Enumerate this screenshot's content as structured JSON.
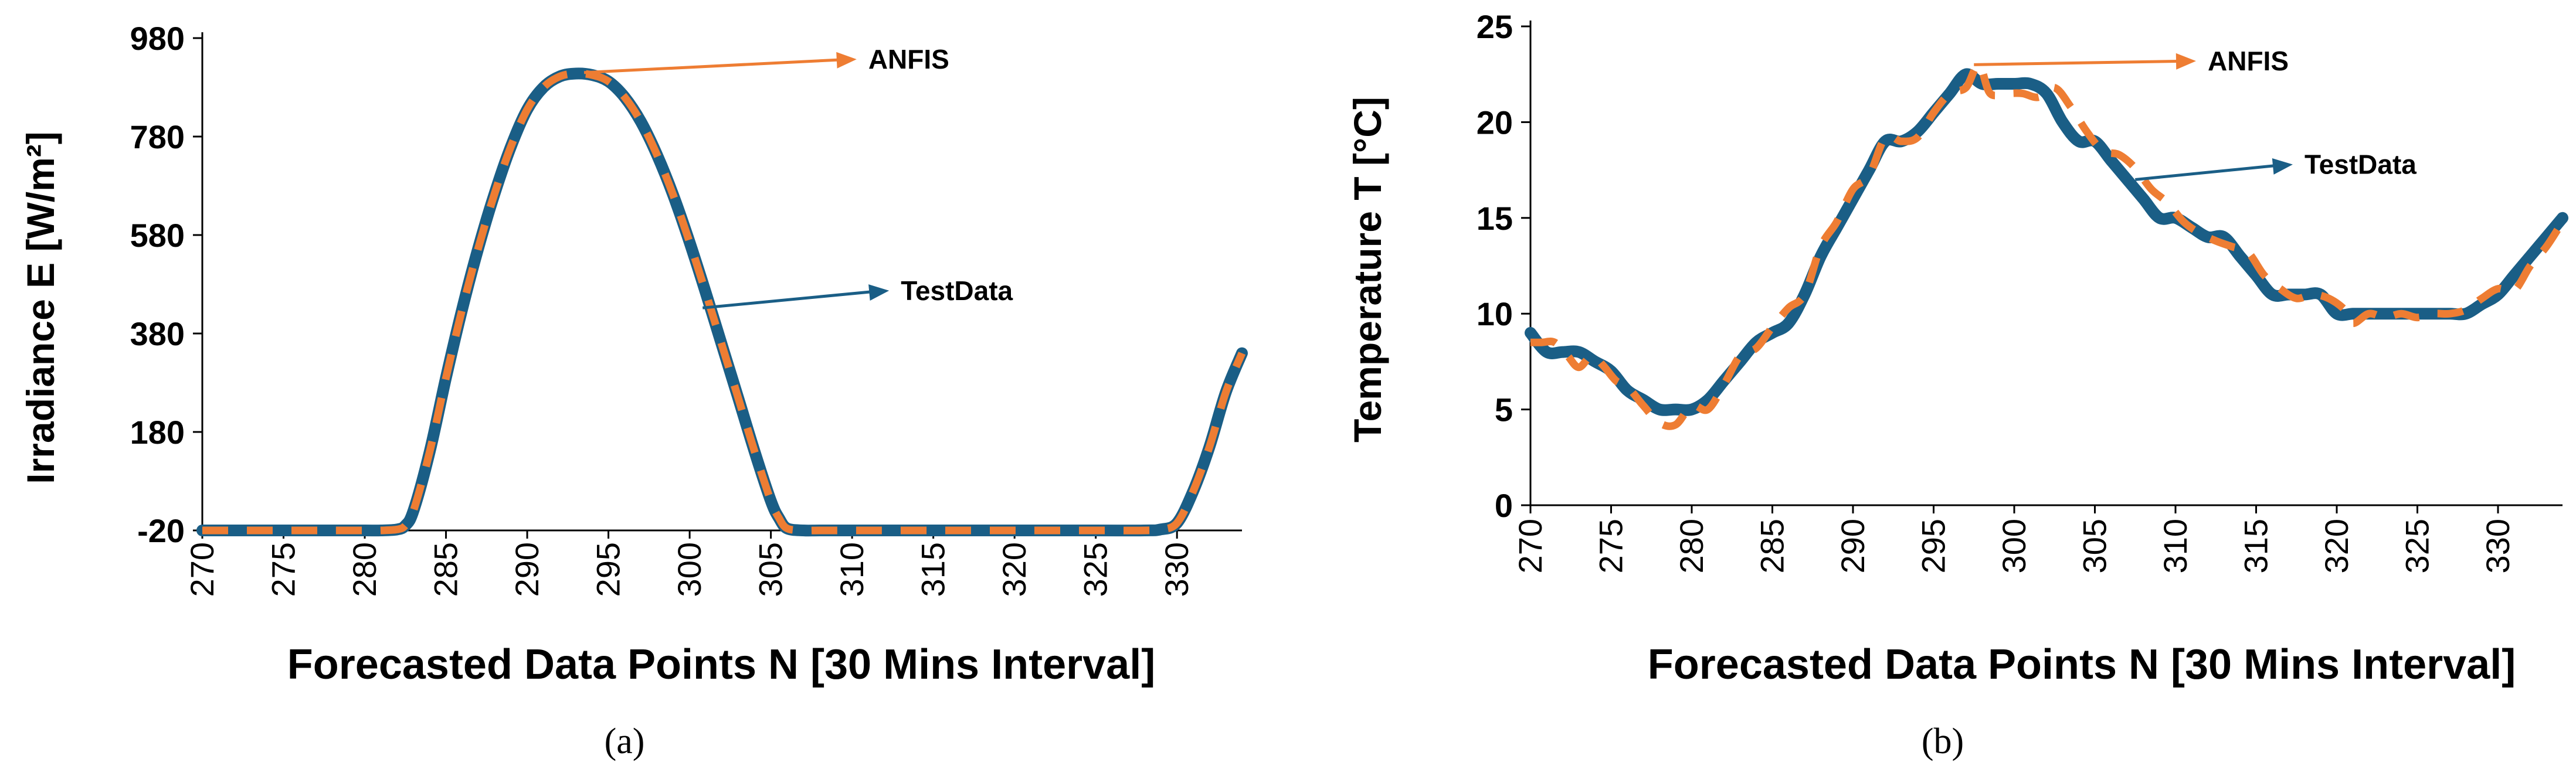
{
  "colors": {
    "test_data": "#1a5e86",
    "anfis": "#ee7d33",
    "annotation_teststroke": "#1a5e86",
    "annotation_anfisstroke": "#ee7d33",
    "axis": "#000000"
  },
  "chart_data": [
    {
      "type": "line",
      "panel_label": "(a)",
      "xlabel": "Forecasted Data Points N [30 Mins Interval]",
      "ylabel": "Irradiance E [W/m²]",
      "xlim": [
        270,
        334
      ],
      "ylim": [
        -20,
        980
      ],
      "xticks": [
        270,
        275,
        280,
        285,
        290,
        295,
        300,
        305,
        310,
        315,
        320,
        325,
        330
      ],
      "yticks": [
        -20,
        180,
        380,
        580,
        780,
        980
      ],
      "grid": false,
      "legend": "annotations",
      "annotations": [
        {
          "text": "ANFIS",
          "series": "ANFIS",
          "at": [
            293.5,
            910
          ],
          "label_at": [
            311,
            918
          ]
        },
        {
          "text": "TestData",
          "series": "TestData",
          "at": [
            300.8,
            432
          ],
          "label_at": [
            313,
            448
          ]
        }
      ],
      "series": [
        {
          "name": "TestData",
          "x": [
            270,
            272,
            274,
            276,
            278,
            280,
            281,
            282,
            282.5,
            283,
            284,
            285,
            286,
            287,
            288,
            289,
            290,
            291,
            292,
            293,
            294,
            295,
            296,
            297,
            298,
            299,
            300,
            301,
            302,
            303,
            304,
            305,
            305.5,
            306,
            307,
            308,
            310,
            315,
            320,
            325,
            328,
            329,
            330,
            331,
            332,
            333,
            334
          ],
          "y": [
            -20,
            -20,
            -20,
            -20,
            -20,
            -20,
            -20,
            -18,
            -10,
            20,
            140,
            290,
            430,
            555,
            665,
            760,
            835,
            880,
            902,
            908,
            905,
            892,
            860,
            810,
            742,
            660,
            565,
            462,
            355,
            248,
            140,
            40,
            5,
            -16,
            -20,
            -20,
            -20,
            -20,
            -20,
            -20,
            -20,
            -18,
            -5,
            60,
            150,
            260,
            340
          ]
        },
        {
          "name": "ANFIS",
          "x": [
            270,
            272,
            274,
            276,
            278,
            280,
            281,
            282,
            282.5,
            283,
            284,
            285,
            286,
            287,
            288,
            289,
            290,
            291,
            292,
            293,
            294,
            295,
            296,
            297,
            298,
            299,
            300,
            301,
            302,
            303,
            304,
            305,
            305.5,
            306,
            307,
            308,
            310,
            315,
            320,
            325,
            328,
            329,
            330,
            331,
            332,
            333,
            334
          ],
          "y": [
            -20,
            -20,
            -20,
            -20,
            -20,
            -20,
            -20,
            -18,
            -10,
            20,
            140,
            290,
            430,
            555,
            665,
            760,
            835,
            880,
            902,
            908,
            905,
            892,
            860,
            810,
            742,
            660,
            565,
            462,
            355,
            248,
            140,
            40,
            5,
            -16,
            -20,
            -20,
            -20,
            -20,
            -20,
            -20,
            -20,
            -18,
            -5,
            60,
            150,
            260,
            340
          ]
        }
      ]
    },
    {
      "type": "line",
      "panel_label": "(b)",
      "xlabel": "Forecasted Data Points N [30 Mins Interval]",
      "ylabel": "Temperature T [°C]",
      "xlim": [
        270,
        334
      ],
      "ylim": [
        0,
        25
      ],
      "xticks": [
        270,
        275,
        280,
        285,
        290,
        295,
        300,
        305,
        310,
        315,
        320,
        325,
        330
      ],
      "yticks": [
        0,
        5,
        10,
        15,
        20,
        25
      ],
      "grid": false,
      "legend": "annotations",
      "annotations": [
        {
          "text": "ANFIS",
          "series": "ANFIS",
          "at": [
            297.5,
            23
          ],
          "label_at": [
            312,
            22.7
          ]
        },
        {
          "text": "TestData",
          "series": "TestData",
          "at": [
            307.5,
            17
          ],
          "label_at": [
            318,
            17.3
          ]
        }
      ],
      "series": [
        {
          "name": "TestData",
          "x": [
            270,
            271,
            272,
            273,
            274,
            275,
            276,
            277,
            278,
            279,
            280,
            281,
            282,
            283,
            284,
            285,
            286,
            287,
            288,
            289,
            290,
            291,
            292,
            293,
            294,
            295,
            296,
            297,
            298,
            299,
            300,
            301,
            302,
            303,
            304,
            305,
            306,
            307,
            308,
            309,
            310,
            311,
            312,
            313,
            314,
            315,
            316,
            317,
            318,
            319,
            320,
            321,
            322,
            323,
            324,
            325,
            326,
            327,
            328,
            329,
            330,
            331,
            332,
            333,
            334
          ],
          "y": [
            9,
            8,
            8,
            8,
            7.5,
            7,
            6,
            5.5,
            5,
            5,
            5,
            5.5,
            6.5,
            7.5,
            8.5,
            9,
            9.5,
            11,
            13,
            14.5,
            16,
            17.5,
            19,
            19,
            19.5,
            20.5,
            21.5,
            22.5,
            22,
            22,
            22,
            22,
            21.5,
            20,
            19,
            19,
            18,
            17,
            16,
            15,
            15,
            14.5,
            14,
            14,
            13,
            12,
            11,
            11,
            11,
            11,
            10,
            10,
            10,
            10,
            10,
            10,
            10,
            10,
            10,
            10.5,
            11,
            12,
            13,
            14,
            15
          ]
        },
        {
          "name": "ANFIS",
          "x": [
            270,
            270.7,
            271.5,
            272.3,
            273,
            273.8,
            274.5,
            275.3,
            276,
            277,
            278,
            279,
            280,
            281,
            282,
            283,
            284,
            285,
            286,
            287,
            288,
            289,
            290,
            291,
            292,
            293,
            294,
            295,
            296,
            297,
            297.8,
            298.5,
            299.5,
            300.5,
            301.5,
            302.5,
            303.5,
            304.5,
            305.5,
            306.5,
            307.5,
            308.5,
            309.5,
            310.5,
            311.5,
            312.5,
            313.5,
            314.5,
            315.5,
            316.5,
            317.5,
            318.5,
            319.5,
            320.5,
            321,
            322,
            323,
            324,
            325,
            326,
            327,
            328,
            329,
            330,
            331,
            332,
            333,
            334
          ],
          "y": [
            8.5,
            8.5,
            8.5,
            7.8,
            7.2,
            7.8,
            7.3,
            6.5,
            6.2,
            5.2,
            4.3,
            4.2,
            5.2,
            5,
            6.3,
            7.8,
            8.2,
            9.3,
            10.3,
            11,
            13.5,
            14.8,
            16.5,
            17.2,
            19.2,
            19,
            19.2,
            20.5,
            21.5,
            21.8,
            23,
            21.5,
            21.5,
            21.5,
            21.3,
            21.8,
            20.8,
            19.5,
            18.5,
            18.3,
            17.6,
            16.5,
            15.8,
            14.8,
            14.2,
            13.8,
            13.5,
            13.2,
            12,
            11.3,
            10.8,
            11,
            10.8,
            10.2,
            9.5,
            10,
            9.8,
            10,
            9.8,
            10,
            10,
            10.2,
            10.8,
            11.3,
            11.2,
            12.5,
            13.5,
            14.8
          ]
        }
      ]
    }
  ]
}
